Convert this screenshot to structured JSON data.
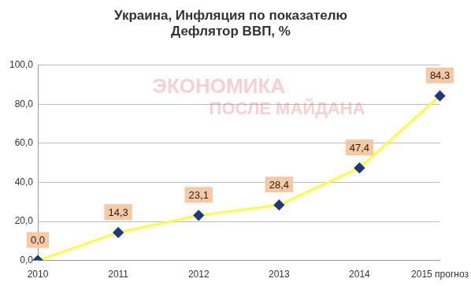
{
  "chart_data": {
    "type": "line",
    "title": [
      "Украина, Инфляция по показателю",
      "Дефлятор ВВП, %"
    ],
    "annotations": [
      "ЭКОНОМИКА",
      "ПОСЛЕ МАЙДАНА"
    ],
    "categories": [
      "2010",
      "2011",
      "2012",
      "2013",
      "2014",
      "2015 прогноз"
    ],
    "values": [
      0.0,
      14.3,
      23.1,
      28.4,
      47.4,
      84.3
    ],
    "value_labels": [
      "0,0",
      "14,3",
      "23,1",
      "28,4",
      "47,4",
      "84,3"
    ],
    "color": "#ffff33",
    "marker": "diamond",
    "line_style": "solid",
    "data_labels": true,
    "ylim": [
      0,
      100
    ],
    "yticks": [
      {
        "value": 0,
        "label": "0,0"
      },
      {
        "value": 20,
        "label": "20,0"
      },
      {
        "value": 40,
        "label": "40,0"
      },
      {
        "value": 60,
        "label": "60,0"
      },
      {
        "value": 80,
        "label": "80,0"
      },
      {
        "value": 100,
        "label": "100,0"
      }
    ],
    "grid": true
  }
}
